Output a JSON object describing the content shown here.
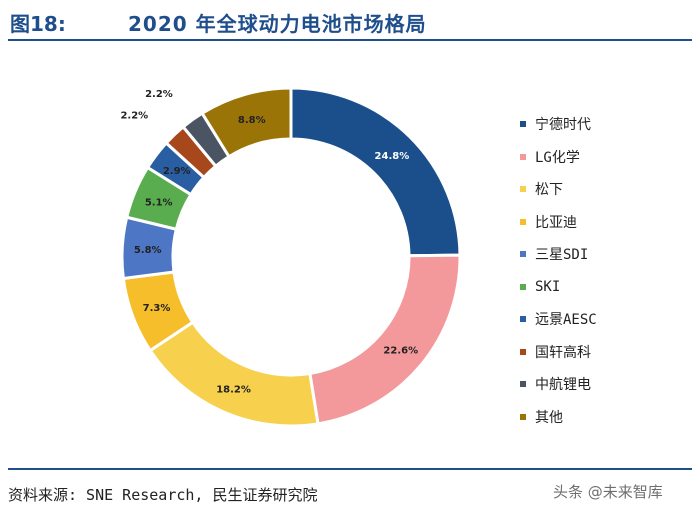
{
  "header": {
    "figure_label": "图18:",
    "title": "2020 年全球动力电池市场格局"
  },
  "chart_data": {
    "type": "pie",
    "variant": "donut",
    "title": "2020 年全球动力电池市场格局",
    "start": "12 o'clock",
    "direction": "clockwise",
    "slices": [
      {
        "label": "宁德时代",
        "value": 24.8,
        "display": "24.8%",
        "color": "#1a4f8b",
        "label_color": "#ffffff"
      },
      {
        "label": "LG化学",
        "value": 22.6,
        "display": "22.6%",
        "color": "#f4999b",
        "label_color": "#222222"
      },
      {
        "label": "松下",
        "value": 18.2,
        "display": "18.2%",
        "color": "#f7d04d",
        "label_color": "#222222"
      },
      {
        "label": "比亚迪",
        "value": 7.3,
        "display": "7.3%",
        "color": "#f7be2b",
        "label_color": "#222222"
      },
      {
        "label": "三星SDI",
        "value": 5.8,
        "display": "5.8%",
        "color": "#4d76c4",
        "label_color": "#222222"
      },
      {
        "label": "SKI",
        "value": 5.1,
        "display": "5.1%",
        "color": "#5aad4e",
        "label_color": "#222222"
      },
      {
        "label": "远景AESC",
        "value": 2.9,
        "display": "2.9%",
        "color": "#2a5ea3",
        "label_color": "#222222"
      },
      {
        "label": "国轩高科",
        "value": 2.2,
        "display": "2.2%",
        "color": "#a6471c",
        "label_color": "#222222"
      },
      {
        "label": "中航锂电",
        "value": 2.2,
        "display": "2.2%",
        "color": "#4a5462",
        "label_color": "#222222"
      },
      {
        "label": "其他",
        "value": 8.8,
        "display": "8.8%",
        "color": "#9b7408",
        "label_color": "#222222"
      }
    ],
    "legend_position": "right"
  },
  "footer": {
    "source": "资料来源: SNE Research, 民生证券研究院",
    "watermark": "头条 @未来智库"
  }
}
